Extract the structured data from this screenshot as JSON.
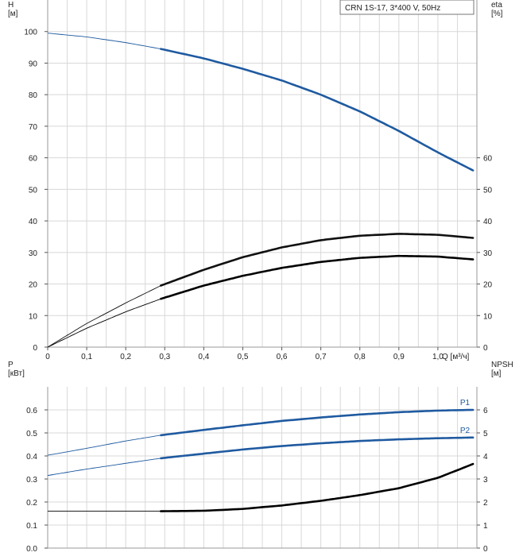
{
  "chart_data": [
    {
      "type": "line",
      "title": "",
      "legend_box": "CRN 1S-17, 3*400 V, 50Hz",
      "left_axis": {
        "label_name": "H",
        "label_unit": "[м]",
        "ticks": [
          "0",
          "10",
          "20",
          "30",
          "40",
          "50",
          "60",
          "70",
          "80",
          "90",
          "100"
        ],
        "ylim": [
          0,
          110
        ]
      },
      "right_axis": {
        "label_name": "eta",
        "label_unit": "[%]",
        "ticks": [
          "0",
          "10",
          "20",
          "30",
          "40",
          "50",
          "60"
        ],
        "ylim": [
          0,
          110
        ]
      },
      "x_axis": {
        "label": "Q [м³/ч]",
        "ticks": [
          "0",
          "0,1",
          "0,2",
          "0,3",
          "0,4",
          "0,5",
          "0,6",
          "0,7",
          "0,8",
          "0,9",
          "1,0"
        ],
        "xlim": [
          0,
          1.1
        ]
      },
      "grid": true,
      "series": [
        {
          "name": "",
          "axis": "left",
          "color": "#1f5aa0",
          "thick_from": 0.29,
          "x": [
            0,
            0.1,
            0.2,
            0.29,
            0.4,
            0.5,
            0.6,
            0.7,
            0.8,
            0.9,
            1.0,
            1.09
          ],
          "y": [
            99.5,
            98.3,
            96.5,
            94.5,
            91.5,
            88.2,
            84.5,
            80,
            74.7,
            68.5,
            61.7,
            56
          ]
        },
        {
          "name": "",
          "axis": "left",
          "color": "#111111",
          "thick_from": 0.29,
          "x": [
            0,
            0.1,
            0.2,
            0.29,
            0.4,
            0.5,
            0.6,
            0.7,
            0.8,
            0.9,
            1.0,
            1.09
          ],
          "y": [
            0,
            7.5,
            14,
            19.5,
            24.5,
            28.5,
            31.6,
            33.9,
            35.3,
            35.9,
            35.6,
            34.6
          ]
        },
        {
          "name": "",
          "axis": "right",
          "color": "#000000",
          "thick_from": 0.29,
          "x": [
            0,
            0.1,
            0.2,
            0.29,
            0.4,
            0.5,
            0.6,
            0.7,
            0.8,
            0.9,
            1.0,
            1.09
          ],
          "y": [
            0,
            6,
            11.2,
            15.3,
            19.5,
            22.6,
            25.1,
            27,
            28.3,
            28.9,
            28.7,
            27.8
          ]
        }
      ]
    },
    {
      "type": "line",
      "title": "",
      "left_axis": {
        "label_name": "P",
        "label_unit": "[кВт]",
        "ticks": [
          "0.0",
          "0.1",
          "0.2",
          "0.3",
          "0.4",
          "0.5",
          "0.6"
        ],
        "ylim": [
          0,
          0.7
        ]
      },
      "right_axis": {
        "label_name": "NPSH",
        "label_unit": "[м]",
        "ticks": [
          "0",
          "1",
          "2",
          "3",
          "4",
          "5",
          "6"
        ],
        "ylim": [
          0,
          7
        ]
      },
      "x_axis": {
        "xlim": [
          0,
          1.1
        ]
      },
      "grid": true,
      "series": [
        {
          "name": "P1",
          "axis": "left",
          "color": "#1f5aa0",
          "thick_from": 0.29,
          "x": [
            0,
            0.1,
            0.2,
            0.29,
            0.4,
            0.5,
            0.6,
            0.7,
            0.8,
            0.9,
            1.0,
            1.09
          ],
          "y": [
            0.403,
            0.433,
            0.465,
            0.49,
            0.513,
            0.533,
            0.552,
            0.567,
            0.58,
            0.59,
            0.597,
            0.6
          ]
        },
        {
          "name": "P2",
          "axis": "left",
          "color": "#1f5aa0",
          "thick_from": 0.29,
          "x": [
            0,
            0.1,
            0.2,
            0.29,
            0.4,
            0.5,
            0.6,
            0.7,
            0.8,
            0.9,
            1.0,
            1.09
          ],
          "y": [
            0.315,
            0.343,
            0.368,
            0.39,
            0.41,
            0.428,
            0.443,
            0.455,
            0.465,
            0.472,
            0.477,
            0.48
          ]
        },
        {
          "name": "",
          "axis": "right",
          "color": "#000000",
          "thick_from": 0.29,
          "x": [
            0,
            0.1,
            0.2,
            0.29,
            0.4,
            0.5,
            0.6,
            0.7,
            0.8,
            0.9,
            1.0,
            1.09
          ],
          "y": [
            1.6,
            1.6,
            1.6,
            1.6,
            1.62,
            1.7,
            1.85,
            2.05,
            2.3,
            2.6,
            3.05,
            3.65
          ]
        }
      ]
    }
  ]
}
